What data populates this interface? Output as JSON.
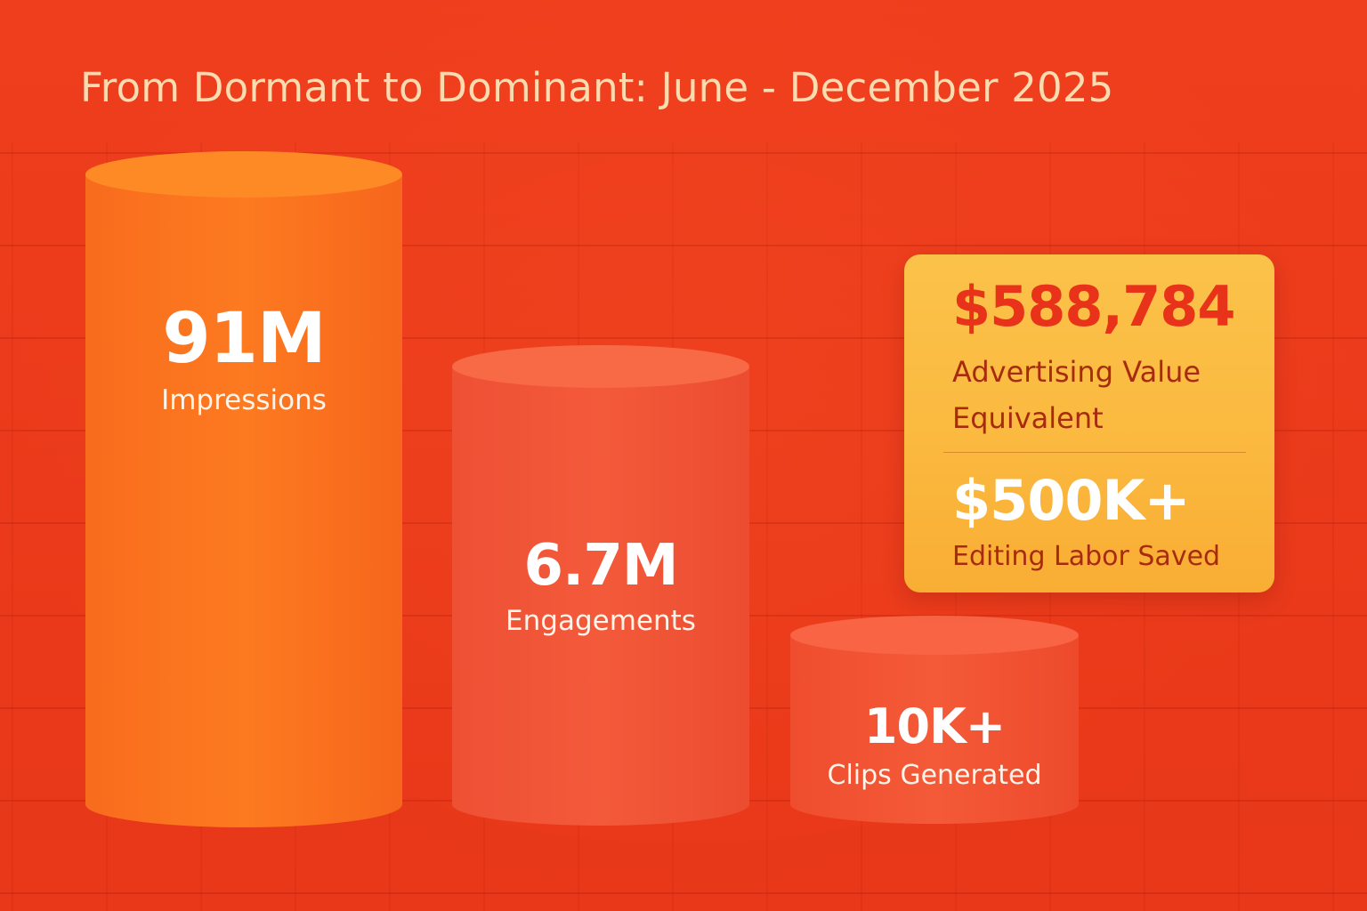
{
  "title": "From Dormant to Dominant: June - December 2025",
  "colors": {
    "background": "#ec3a1c",
    "bar_primary": "#fd741e",
    "bar_secondary": "#f25637",
    "card": "#fbbf45",
    "card_accent": "#e8321a",
    "title_text": "#f9dcb0"
  },
  "chart_data": {
    "type": "bar",
    "title": "From Dormant to Dominant: June - December 2025",
    "categories": [
      "Impressions",
      "Engagements",
      "Clips Generated"
    ],
    "values": [
      91000000,
      6700000,
      10000
    ],
    "value_labels": [
      "91M",
      "6.7M",
      "10K+"
    ],
    "xlabel": "",
    "ylabel": "",
    "grid": true,
    "legend": "none"
  },
  "callout": {
    "value_1": "$588,784",
    "label_1": "Advertising Value Equivalent",
    "value_2": "$500K+",
    "label_2": "Editing Labor Saved"
  }
}
